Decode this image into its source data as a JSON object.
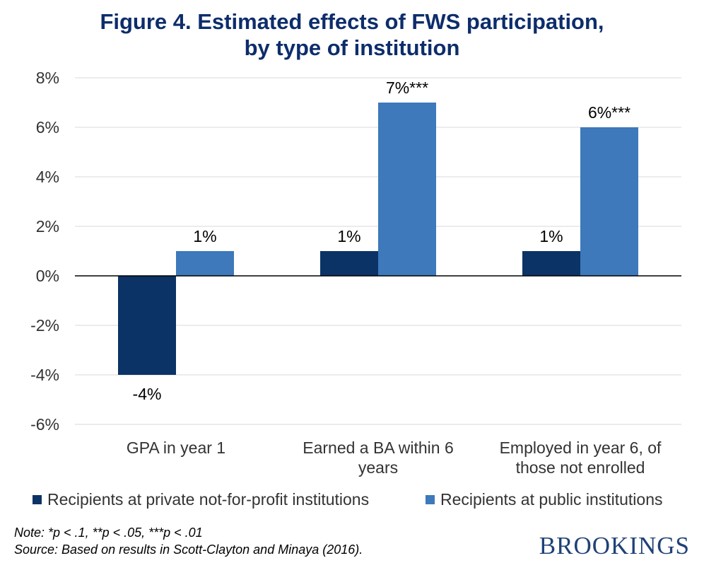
{
  "title_line1": "Figure 4. Estimated effects of FWS participation,",
  "title_line2": "by type of institution",
  "chart_data": {
    "type": "bar",
    "categories": [
      [
        "GPA in year 1"
      ],
      [
        "Earned a BA within 6",
        "years"
      ],
      [
        "Employed in year 6, of",
        "those not enrolled"
      ]
    ],
    "series": [
      {
        "name": "Recipients at private not-for-profit institutions",
        "color": "#0b3366",
        "values": [
          -4,
          1,
          1
        ],
        "labels": [
          "-4%",
          "1%",
          "1%"
        ]
      },
      {
        "name": "Recipients at public institutions",
        "color": "#3d79bb",
        "values": [
          1,
          7,
          6
        ],
        "labels": [
          "1%",
          "7%***",
          "6%***"
        ]
      }
    ],
    "ylim": [
      -6,
      8
    ],
    "yticks": [
      8,
      6,
      4,
      2,
      0,
      -2,
      -4,
      -6
    ],
    "ytick_labels": [
      "8%",
      "6%",
      "4%",
      "2%",
      "0%",
      "-2%",
      "-4%",
      "-6%"
    ],
    "grid": true,
    "legend_position": "bottom"
  },
  "note_line1": "Note: *p < .1, **p < .05, ***p < .01",
  "note_line2": "Source: Based on results in Scott-Clayton and Minaya (2016).",
  "brand": "BROOKINGS"
}
